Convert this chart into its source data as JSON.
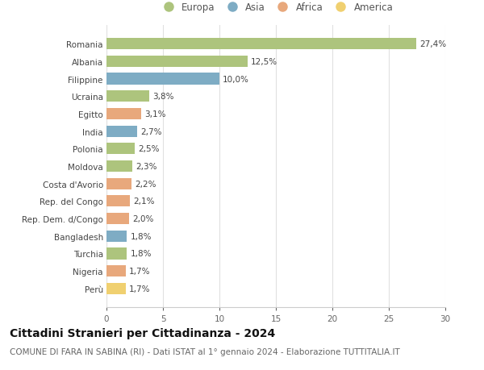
{
  "countries": [
    "Romania",
    "Albania",
    "Filippine",
    "Ucraina",
    "Egitto",
    "India",
    "Polonia",
    "Moldova",
    "Costa d'Avorio",
    "Rep. del Congo",
    "Rep. Dem. d/Congo",
    "Bangladesh",
    "Turchia",
    "Nigeria",
    "Perù"
  ],
  "values": [
    27.4,
    12.5,
    10.0,
    3.8,
    3.1,
    2.7,
    2.5,
    2.3,
    2.2,
    2.1,
    2.0,
    1.8,
    1.8,
    1.7,
    1.7
  ],
  "labels": [
    "27,4%",
    "12,5%",
    "10,0%",
    "3,8%",
    "3,1%",
    "2,7%",
    "2,5%",
    "2,3%",
    "2,2%",
    "2,1%",
    "2,0%",
    "1,8%",
    "1,8%",
    "1,7%",
    "1,7%"
  ],
  "continents": [
    "Europa",
    "Europa",
    "Asia",
    "Europa",
    "Africa",
    "Asia",
    "Europa",
    "Europa",
    "Africa",
    "Africa",
    "Africa",
    "Asia",
    "Europa",
    "Africa",
    "America"
  ],
  "continent_colors": {
    "Europa": "#adc47d",
    "Asia": "#7eacc4",
    "Africa": "#e8a87c",
    "America": "#f0d070"
  },
  "legend_order": [
    "Europa",
    "Asia",
    "Africa",
    "America"
  ],
  "title": "Cittadini Stranieri per Cittadinanza - 2024",
  "subtitle": "COMUNE DI FARA IN SABINA (RI) - Dati ISTAT al 1° gennaio 2024 - Elaborazione TUTTITALIA.IT",
  "xlim": [
    0,
    30
  ],
  "xticks": [
    0,
    5,
    10,
    15,
    20,
    25,
    30
  ],
  "background_color": "#ffffff",
  "grid_color": "#e0e0e0",
  "bar_height": 0.65,
  "title_fontsize": 10,
  "subtitle_fontsize": 7.5,
  "label_fontsize": 7.5,
  "tick_fontsize": 7.5,
  "legend_fontsize": 8.5
}
